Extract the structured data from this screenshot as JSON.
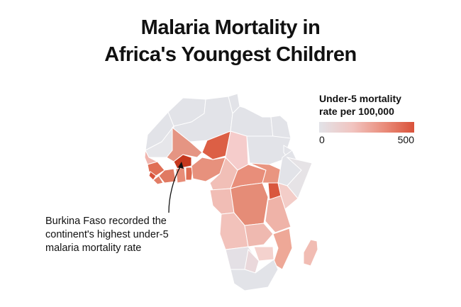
{
  "title": {
    "line1": "Malaria Mortality in",
    "line2": "Africa's Youngest Children"
  },
  "legend": {
    "title_line1": "Under-5 mortality",
    "title_line2": "rate per 100,000",
    "min_label": "0",
    "max_label": "500",
    "min_value": 0,
    "max_value": 500,
    "color_low": "#e2e3e8",
    "color_high": "#d9523a"
  },
  "annotation": {
    "line1": "Burkina Faso recorded the",
    "line2": "continent's highest under-5",
    "line3": "malaria mortality rate"
  },
  "colors": {
    "no_data": "#e2e3e8",
    "borders": "#ffffff",
    "arrow": "#111111"
  }
}
